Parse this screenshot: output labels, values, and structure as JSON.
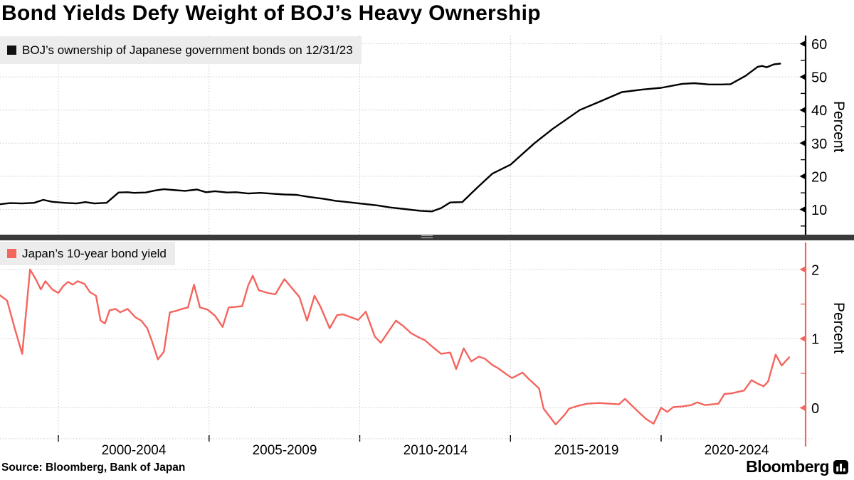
{
  "title": "Bond Yields Defy Weight of BOJ’s Heavy Ownership",
  "source": "Source: Bloomberg, Bank of Japan",
  "branding": {
    "logo_text": "Bloomberg",
    "logo_icon": "bloomberg-terminal-icon"
  },
  "colors": {
    "boj_line": "#000000",
    "yield_line": "#F4655E",
    "legend_bg": "#ececec",
    "gridline": "#c7c7c7",
    "separator": "#3a3a3a"
  },
  "x_axis": {
    "tick_labels": [
      "2000-2004",
      "2005-2009",
      "2010-2014",
      "2015-2019",
      "2020-2024"
    ],
    "gridline_years": [
      2000,
      2005,
      2010,
      2015,
      2020
    ],
    "range": [
      1998,
      2024.8
    ]
  },
  "chart_data": [
    {
      "type": "line",
      "panel": "top",
      "legend": "BOJ’s ownership of Japanese government bonds on 12/31/23",
      "ylabel": "Percent",
      "yticks": [
        10,
        20,
        30,
        40,
        50,
        60
      ],
      "yticks_minor": [
        5,
        15,
        25,
        35,
        45,
        55
      ],
      "ylim": [
        2,
        62.5
      ],
      "grid": true,
      "legend_position": "top-left",
      "series": [
        {
          "name": "BOJ ownership of Japanese government bonds (%)",
          "color": "#000000",
          "points": [
            [
              1998.0,
              11.5
            ],
            [
              1998.4,
              11.9
            ],
            [
              1998.8,
              11.8
            ],
            [
              1999.2,
              12.0
            ],
            [
              1999.5,
              12.9
            ],
            [
              1999.8,
              12.3
            ],
            [
              2000.2,
              12.0
            ],
            [
              2000.6,
              11.8
            ],
            [
              2000.9,
              12.2
            ],
            [
              2001.2,
              11.8
            ],
            [
              2001.6,
              12.0
            ],
            [
              2002.0,
              15.1
            ],
            [
              2002.3,
              15.2
            ],
            [
              2002.5,
              15.0
            ],
            [
              2002.9,
              15.1
            ],
            [
              2003.2,
              15.7
            ],
            [
              2003.5,
              16.1
            ],
            [
              2003.9,
              15.8
            ],
            [
              2004.2,
              15.6
            ],
            [
              2004.6,
              16.0
            ],
            [
              2004.9,
              15.2
            ],
            [
              2005.2,
              15.5
            ],
            [
              2005.6,
              15.1
            ],
            [
              2005.9,
              15.2
            ],
            [
              2006.3,
              14.8
            ],
            [
              2006.7,
              15.0
            ],
            [
              2007.0,
              14.8
            ],
            [
              2007.5,
              14.5
            ],
            [
              2007.9,
              14.4
            ],
            [
              2008.3,
              13.8
            ],
            [
              2008.8,
              13.2
            ],
            [
              2009.2,
              12.6
            ],
            [
              2009.6,
              12.2
            ],
            [
              2010.1,
              11.7
            ],
            [
              2010.6,
              11.2
            ],
            [
              2011.0,
              10.6
            ],
            [
              2011.5,
              10.1
            ],
            [
              2012.0,
              9.6
            ],
            [
              2012.4,
              9.4
            ],
            [
              2012.7,
              10.4
            ],
            [
              2013.0,
              12.1
            ],
            [
              2013.4,
              12.2
            ],
            [
              2013.9,
              16.6
            ],
            [
              2014.4,
              20.8
            ],
            [
              2015.0,
              23.5
            ],
            [
              2015.8,
              30.0
            ],
            [
              2016.4,
              34.3
            ],
            [
              2017.3,
              40.0
            ],
            [
              2017.9,
              42.3
            ],
            [
              2018.7,
              45.4
            ],
            [
              2019.4,
              46.2
            ],
            [
              2020.0,
              46.7
            ],
            [
              2020.7,
              47.9
            ],
            [
              2021.1,
              48.1
            ],
            [
              2021.6,
              47.7
            ],
            [
              2022.0,
              47.7
            ],
            [
              2022.3,
              47.8
            ],
            [
              2022.8,
              50.3
            ],
            [
              2023.2,
              53.0
            ],
            [
              2023.35,
              53.3
            ],
            [
              2023.5,
              52.9
            ],
            [
              2023.75,
              53.8
            ],
            [
              2023.95,
              54.0
            ]
          ]
        }
      ]
    },
    {
      "type": "line",
      "panel": "bottom",
      "legend": "Japan’s 10-year bond yield",
      "ylabel": "Percent",
      "yticks": [
        0,
        1,
        2
      ],
      "yticks_minor": [
        0.5,
        1.5
      ],
      "ylim": [
        -0.55,
        2.4
      ],
      "grid": true,
      "legend_position": "top-left",
      "series": [
        {
          "name": "Japan 10-year government bond yield (%)",
          "color": "#F4655E",
          "points": [
            [
              1998.05,
              1.63
            ],
            [
              1998.3,
              1.55
            ],
            [
              1998.55,
              1.15
            ],
            [
              1998.8,
              0.78
            ],
            [
              1999.06,
              2.0
            ],
            [
              1999.26,
              1.85
            ],
            [
              1999.42,
              1.71
            ],
            [
              1999.57,
              1.83
            ],
            [
              1999.8,
              1.71
            ],
            [
              2000.0,
              1.66
            ],
            [
              2000.16,
              1.76
            ],
            [
              2000.32,
              1.82
            ],
            [
              2000.48,
              1.78
            ],
            [
              2000.64,
              1.83
            ],
            [
              2000.87,
              1.79
            ],
            [
              2001.05,
              1.67
            ],
            [
              2001.25,
              1.62
            ],
            [
              2001.4,
              1.26
            ],
            [
              2001.55,
              1.22
            ],
            [
              2001.7,
              1.41
            ],
            [
              2001.9,
              1.43
            ],
            [
              2002.05,
              1.38
            ],
            [
              2002.3,
              1.43
            ],
            [
              2002.55,
              1.31
            ],
            [
              2002.75,
              1.26
            ],
            [
              2002.95,
              1.15
            ],
            [
              2003.1,
              0.97
            ],
            [
              2003.3,
              0.7
            ],
            [
              2003.5,
              0.81
            ],
            [
              2003.7,
              1.38
            ],
            [
              2003.9,
              1.4
            ],
            [
              2004.1,
              1.43
            ],
            [
              2004.3,
              1.45
            ],
            [
              2004.5,
              1.78
            ],
            [
              2004.7,
              1.45
            ],
            [
              2004.95,
              1.42
            ],
            [
              2005.2,
              1.33
            ],
            [
              2005.45,
              1.17
            ],
            [
              2005.65,
              1.45
            ],
            [
              2005.9,
              1.46
            ],
            [
              2006.1,
              1.47
            ],
            [
              2006.3,
              1.77
            ],
            [
              2006.45,
              1.91
            ],
            [
              2006.65,
              1.7
            ],
            [
              2006.95,
              1.66
            ],
            [
              2007.2,
              1.64
            ],
            [
              2007.5,
              1.86
            ],
            [
              2008.0,
              1.6
            ],
            [
              2008.25,
              1.26
            ],
            [
              2008.5,
              1.62
            ],
            [
              2008.7,
              1.46
            ],
            [
              2009.0,
              1.15
            ],
            [
              2009.25,
              1.34
            ],
            [
              2009.45,
              1.35
            ],
            [
              2009.7,
              1.31
            ],
            [
              2009.95,
              1.27
            ],
            [
              2010.2,
              1.39
            ],
            [
              2010.5,
              1.03
            ],
            [
              2010.7,
              0.94
            ],
            [
              2011.2,
              1.26
            ],
            [
              2011.45,
              1.18
            ],
            [
              2011.7,
              1.08
            ],
            [
              2011.95,
              1.02
            ],
            [
              2012.15,
              0.98
            ],
            [
              2012.5,
              0.85
            ],
            [
              2012.7,
              0.78
            ],
            [
              2013.0,
              0.8
            ],
            [
              2013.2,
              0.56
            ],
            [
              2013.45,
              0.86
            ],
            [
              2013.7,
              0.67
            ],
            [
              2013.95,
              0.74
            ],
            [
              2014.15,
              0.71
            ],
            [
              2014.4,
              0.62
            ],
            [
              2014.6,
              0.57
            ],
            [
              2014.85,
              0.49
            ],
            [
              2015.05,
              0.43
            ],
            [
              2015.4,
              0.51
            ],
            [
              2015.6,
              0.42
            ],
            [
              2015.95,
              0.28
            ],
            [
              2016.1,
              -0.01
            ],
            [
              2016.5,
              -0.24
            ],
            [
              2016.8,
              -0.1
            ],
            [
              2016.95,
              -0.01
            ],
            [
              2017.25,
              0.03
            ],
            [
              2017.55,
              0.06
            ],
            [
              2017.95,
              0.07
            ],
            [
              2018.3,
              0.06
            ],
            [
              2018.6,
              0.05
            ],
            [
              2018.8,
              0.13
            ],
            [
              2019.2,
              -0.04
            ],
            [
              2019.5,
              -0.16
            ],
            [
              2019.75,
              -0.23
            ],
            [
              2020.0,
              0.0
            ],
            [
              2020.2,
              -0.06
            ],
            [
              2020.4,
              0.01
            ],
            [
              2020.7,
              0.02
            ],
            [
              2021.0,
              0.04
            ],
            [
              2021.2,
              0.08
            ],
            [
              2021.45,
              0.04
            ],
            [
              2021.7,
              0.05
            ],
            [
              2021.9,
              0.06
            ],
            [
              2022.1,
              0.2
            ],
            [
              2022.35,
              0.21
            ],
            [
              2022.55,
              0.23
            ],
            [
              2022.75,
              0.25
            ],
            [
              2023.0,
              0.4
            ],
            [
              2023.2,
              0.35
            ],
            [
              2023.4,
              0.31
            ],
            [
              2023.55,
              0.38
            ],
            [
              2023.8,
              0.77
            ],
            [
              2024.0,
              0.61
            ],
            [
              2024.1,
              0.66
            ],
            [
              2024.25,
              0.73
            ]
          ]
        }
      ]
    }
  ]
}
